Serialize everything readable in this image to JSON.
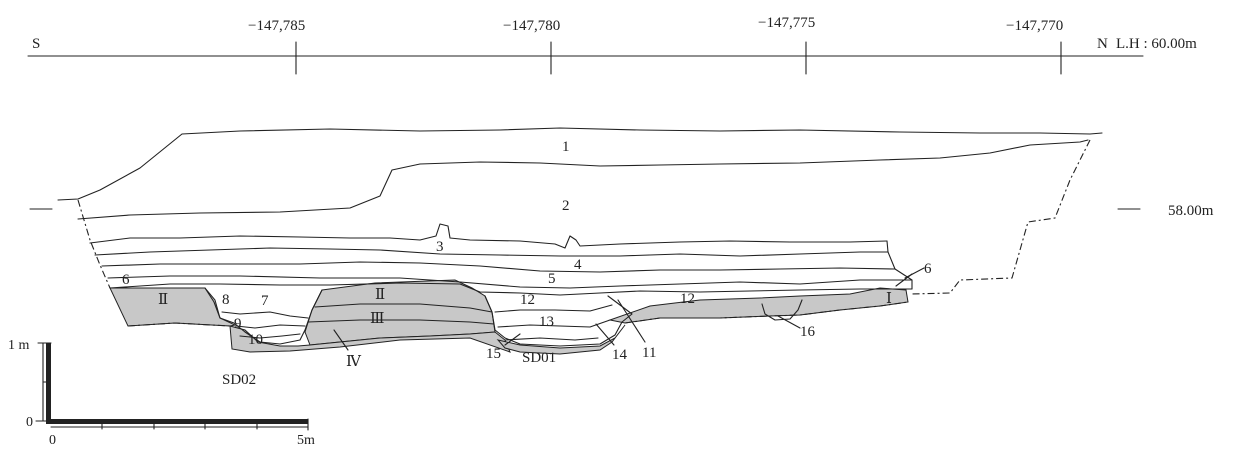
{
  "header": {
    "south": "S",
    "north": "N",
    "level": "L.H : 60.00m",
    "coords": [
      "−147,785",
      "−147,780",
      "−147,775",
      "−147,770"
    ]
  },
  "elevation": "58.00m",
  "layers": {
    "l1": "1",
    "l2": "2",
    "l3": "3",
    "l4": "4",
    "l5": "5",
    "l6a": "6",
    "l6b": "6",
    "l7": "7",
    "l8": "8",
    "l9": "9",
    "l10": "10",
    "l11": "11",
    "l12a": "12",
    "l12b": "12",
    "l13": "13",
    "l14": "14",
    "l15": "15",
    "l16": "16"
  },
  "strata": {
    "IIa": "Ⅱ",
    "IIb": "Ⅱ",
    "III": "Ⅲ",
    "IV": "Ⅳ",
    "I": "Ⅰ"
  },
  "features": {
    "sd01": "SD01",
    "sd02": "SD02"
  },
  "scale": {
    "vertical": "1 m",
    "zero_v": "0",
    "zero_h": "0",
    "horizontal": "5m"
  },
  "colors": {
    "fill": "#c8c8c8",
    "line": "#222222"
  }
}
